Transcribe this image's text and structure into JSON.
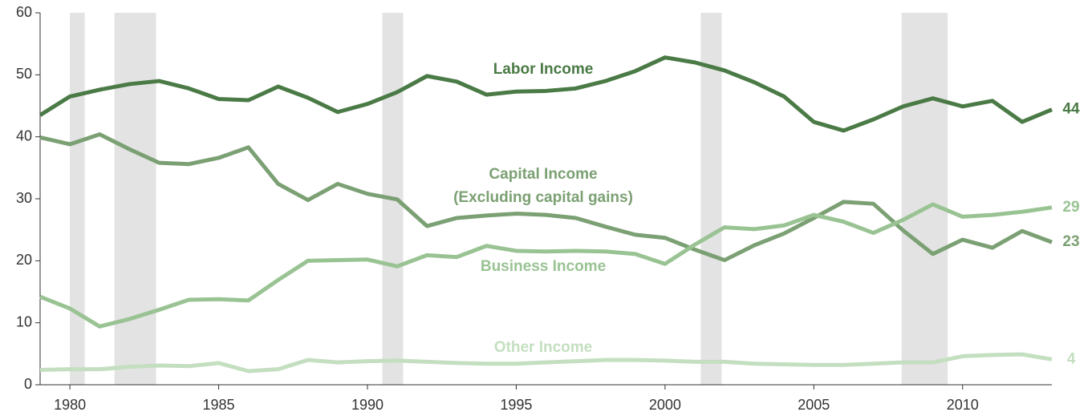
{
  "chart_data": {
    "type": "line",
    "x": [
      1979,
      1980,
      1981,
      1982,
      1983,
      1984,
      1985,
      1986,
      1987,
      1988,
      1989,
      1990,
      1991,
      1992,
      1993,
      1994,
      1995,
      1996,
      1997,
      1998,
      1999,
      2000,
      2001,
      2002,
      2003,
      2004,
      2005,
      2006,
      2007,
      2008,
      2009,
      2010,
      2011,
      2012,
      2013
    ],
    "series": [
      {
        "name": "Labor Income",
        "color": "#4a7a45",
        "end_label": "44",
        "values": [
          43.5,
          46.5,
          47.6,
          48.5,
          49,
          47.8,
          46.1,
          45.9,
          48.1,
          46.3,
          44,
          45.3,
          47.2,
          49.8,
          48.9,
          46.8,
          47.3,
          47.4,
          47.8,
          49,
          50.6,
          52.8,
          52,
          50.7,
          48.8,
          46.5,
          42.4,
          41,
          42.8,
          44.9,
          46.2,
          44.9,
          45.8,
          42.4,
          44.4
        ]
      },
      {
        "name": "Capital Income",
        "subname": "(Excluding capital gains)",
        "color": "#7ba073",
        "end_label": "23",
        "values": [
          39.9,
          38.8,
          40.4,
          38,
          35.8,
          35.6,
          36.6,
          38.3,
          32.4,
          29.8,
          32.4,
          30.8,
          29.9,
          25.6,
          26.9,
          27.3,
          27.6,
          27.4,
          26.9,
          25.5,
          24.2,
          23.7,
          21.8,
          20.1,
          22.5,
          24.4,
          26.9,
          29.5,
          29.2,
          24.9,
          21.1,
          23.4,
          22.1,
          24.8,
          23.0
        ]
      },
      {
        "name": "Business Income",
        "color": "#99c393",
        "end_label": "29",
        "values": [
          14.2,
          12.3,
          9.4,
          10.6,
          12.1,
          13.7,
          13.8,
          13.6,
          16.9,
          20,
          20.1,
          20.2,
          19.1,
          20.9,
          20.6,
          22.4,
          21.6,
          21.5,
          21.6,
          21.5,
          21.1,
          19.5,
          22.6,
          25.4,
          25.1,
          25.7,
          27.4,
          26.3,
          24.5,
          26.6,
          29.1,
          27.1,
          27.4,
          27.9,
          28.6
        ]
      },
      {
        "name": "Other Income",
        "color": "#c4dfc0",
        "end_label": "4",
        "values": [
          2.4,
          2.5,
          2.5,
          2.9,
          3.1,
          3.0,
          3.5,
          2.2,
          2.5,
          4.0,
          3.6,
          3.8,
          3.9,
          3.7,
          3.5,
          3.4,
          3.4,
          3.6,
          3.8,
          4.0,
          4.0,
          3.9,
          3.7,
          3.7,
          3.4,
          3.3,
          3.2,
          3.2,
          3.4,
          3.6,
          3.6,
          4.6,
          4.8,
          4.9,
          4.1
        ]
      }
    ],
    "recessions": [
      [
        1980.0,
        1980.5
      ],
      [
        1981.5,
        1982.9
      ],
      [
        1990.5,
        1991.2
      ],
      [
        2001.2,
        2001.9
      ],
      [
        2007.95,
        2009.5
      ]
    ],
    "recession_color": "#e3e3e3",
    "xlim": [
      1979,
      2013
    ],
    "xticks": [
      1980,
      1985,
      1990,
      1995,
      2000,
      2005,
      2010
    ],
    "ylim": [
      0,
      60
    ],
    "yticks": [
      0,
      10,
      20,
      30,
      40,
      50,
      60
    ]
  }
}
